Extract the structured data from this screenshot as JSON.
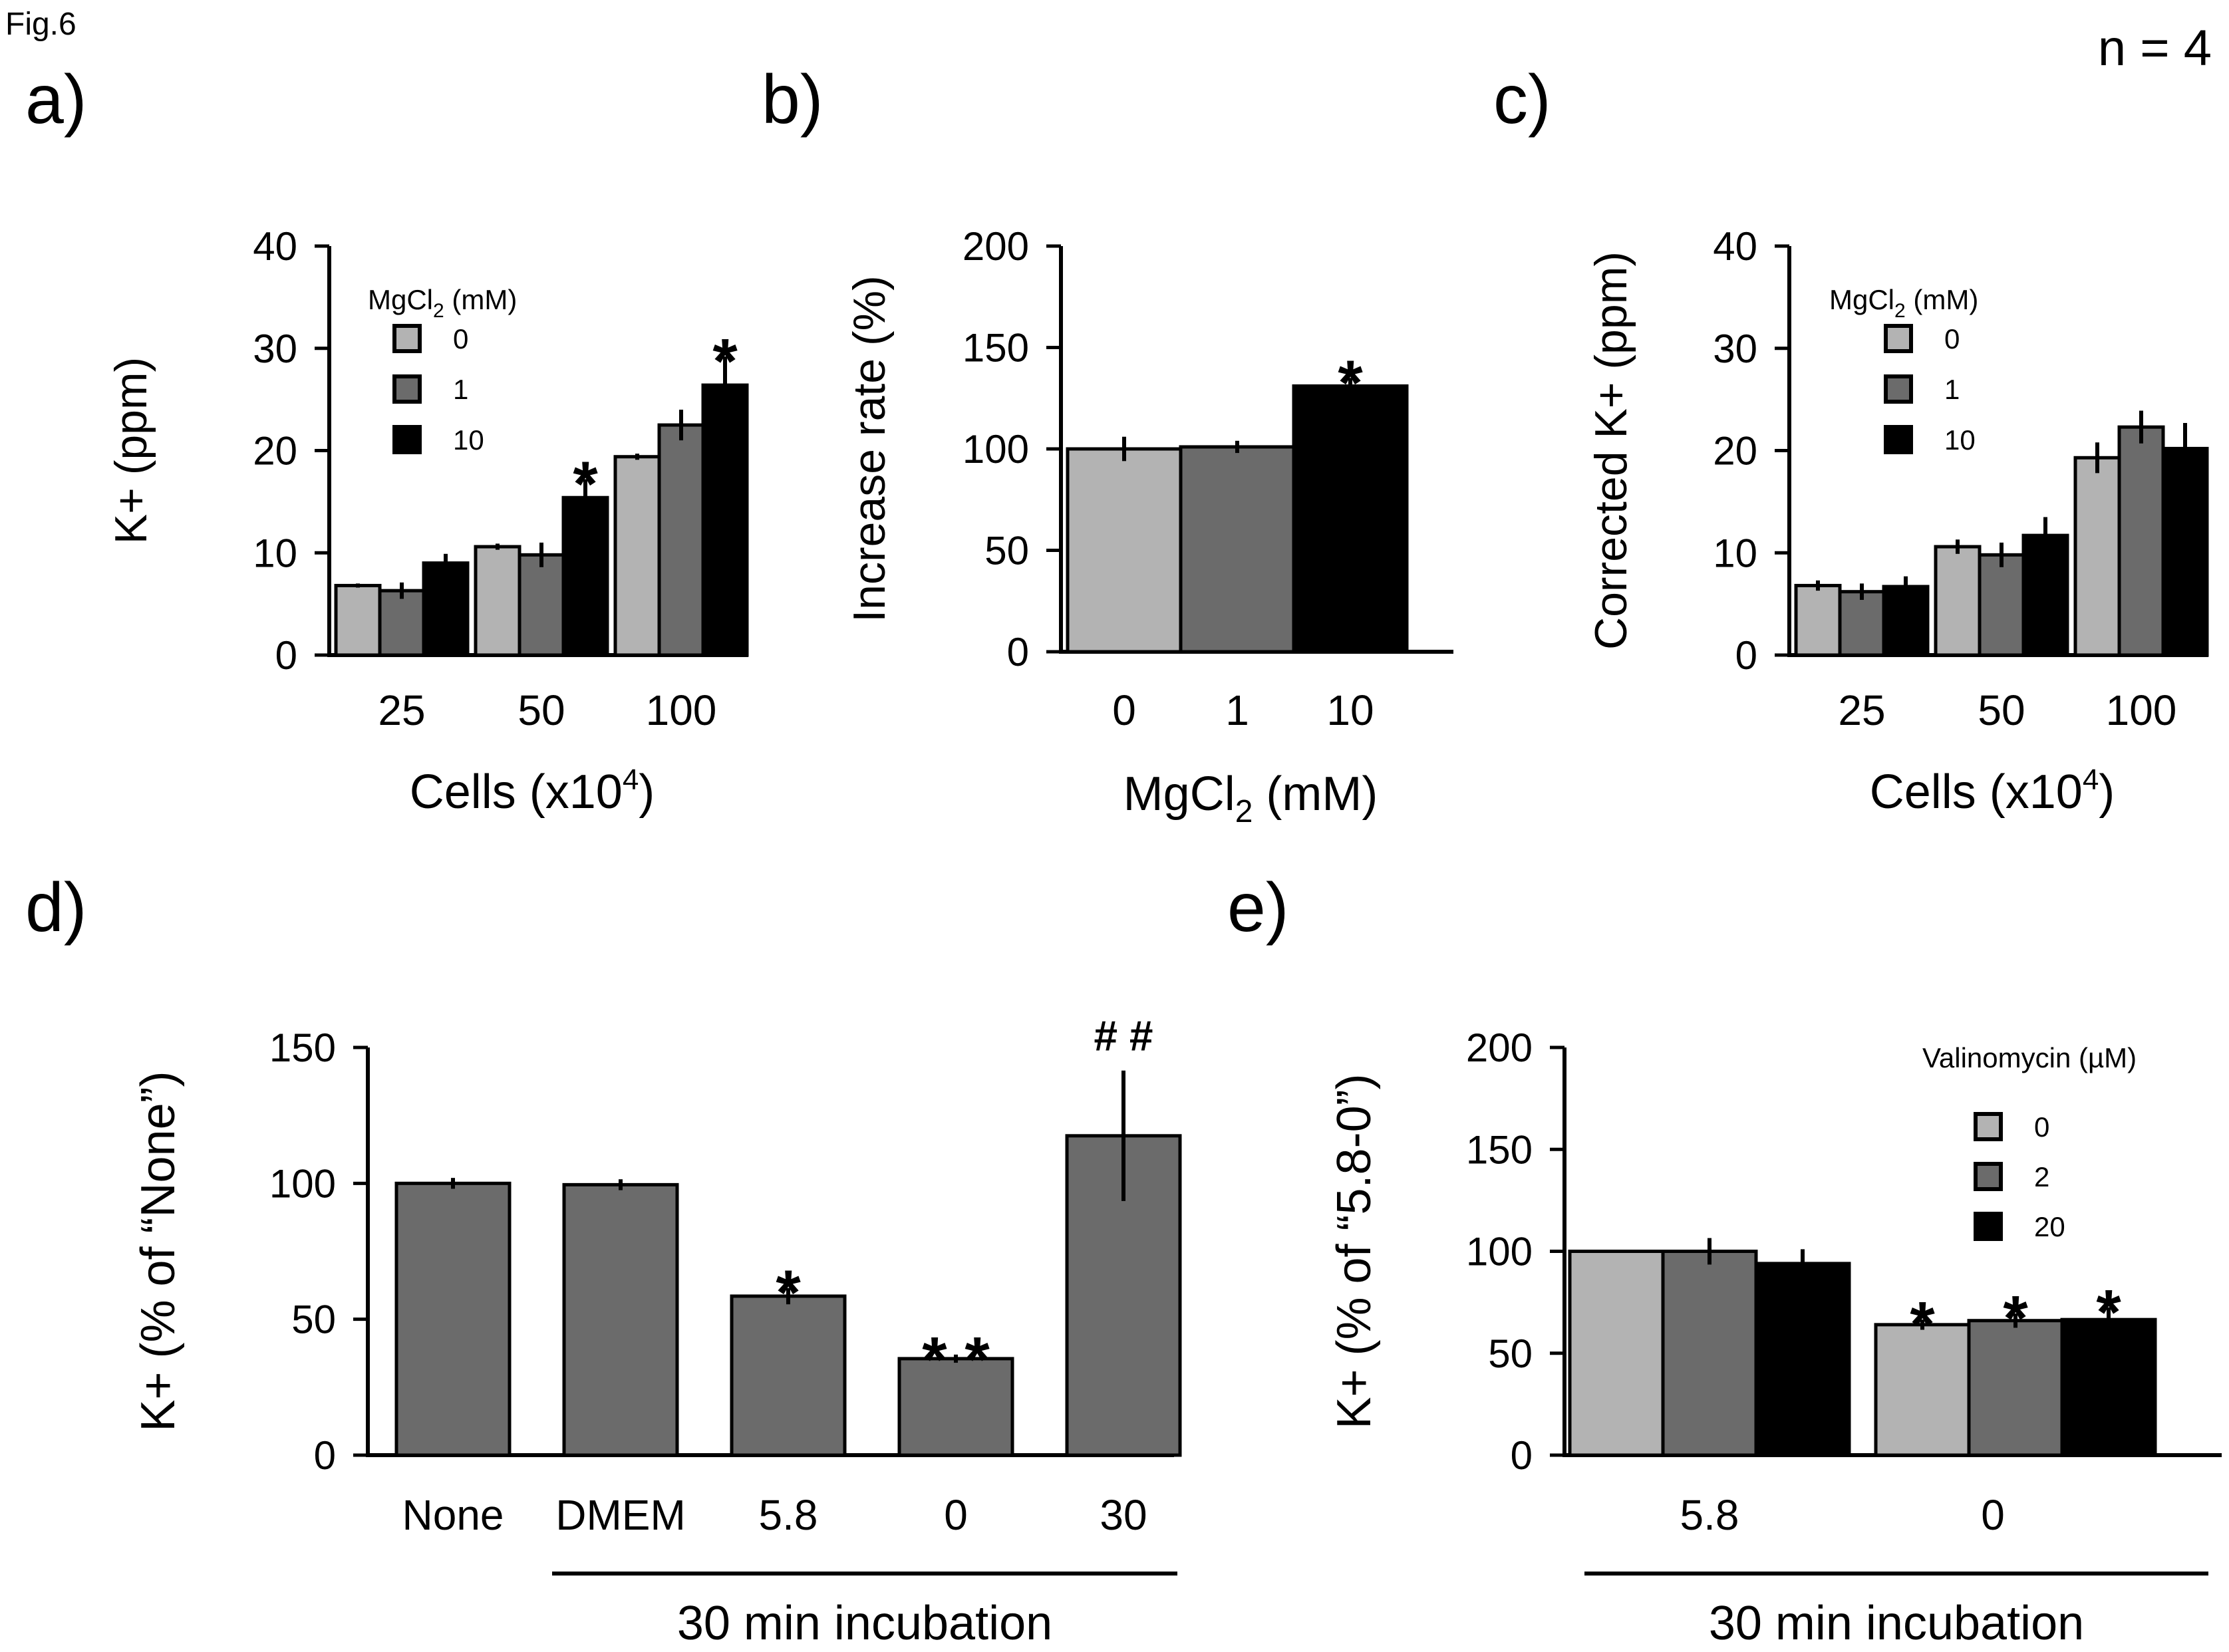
{
  "figure_label": "Fig.6",
  "n_label": "n = 4",
  "colors": {
    "light": "#b3b3b3",
    "mid": "#6b6b6b",
    "dark": "#000000",
    "axis": "#000000"
  },
  "chart_data": [
    {
      "id": "a",
      "panel_label": "a)",
      "type": "bar",
      "ylabel": "K+ (ppm)",
      "xlabel": {
        "main": "Cells (x10",
        "sup": "4",
        "tail": ")"
      },
      "ylim": [
        0,
        40
      ],
      "yticks": [
        0,
        10,
        20,
        30,
        40
      ],
      "categories": [
        "25",
        "50",
        "100"
      ],
      "legend": {
        "title_main": "MgCl",
        "title_sub": "2",
        "title_tail": " (mM)",
        "position": "top-left"
      },
      "series": [
        {
          "name": "0",
          "color": "light",
          "values": [
            6.8,
            10.6,
            19.4
          ],
          "errors": [
            0.2,
            0.3,
            0.3
          ]
        },
        {
          "name": "1",
          "color": "mid",
          "values": [
            6.3,
            9.8,
            22.5
          ],
          "errors": [
            0.8,
            1.2,
            1.5
          ]
        },
        {
          "name": "10",
          "color": "dark",
          "values": [
            9.0,
            15.4,
            26.4
          ],
          "errors": [
            0.9,
            1.8,
            2.8
          ]
        }
      ],
      "annotations": [
        {
          "category": 1,
          "series": 2,
          "text": "*"
        },
        {
          "category": 2,
          "series": 2,
          "text": "*"
        }
      ]
    },
    {
      "id": "b",
      "panel_label": "b)",
      "type": "bar",
      "ylabel": "Increase rate (%)",
      "xlabel": {
        "main": "MgCl",
        "sub": "2",
        "tail": " (mM)"
      },
      "ylim": [
        0,
        200
      ],
      "yticks": [
        0,
        50,
        100,
        150,
        200
      ],
      "categories": [
        "0",
        "1",
        "10"
      ],
      "series": [
        {
          "name": "MgCl2",
          "colors": [
            "light",
            "mid",
            "dark"
          ],
          "values": [
            100,
            101,
            131
          ],
          "errors": [
            6,
            3,
            4
          ]
        }
      ],
      "annotations": [
        {
          "category": 2,
          "text": "*"
        }
      ]
    },
    {
      "id": "c",
      "panel_label": "c)",
      "type": "bar",
      "ylabel": "Corrected K+ (ppm)",
      "xlabel": {
        "main": "Cells (x10",
        "sup": "4",
        "tail": ")"
      },
      "ylim": [
        0,
        40
      ],
      "yticks": [
        0,
        10,
        20,
        30,
        40
      ],
      "categories": [
        "25",
        "50",
        "100"
      ],
      "legend": {
        "title_main": "MgCl",
        "title_sub": "2",
        "title_tail": " (mM)",
        "position": "top-left"
      },
      "series": [
        {
          "name": "0",
          "color": "light",
          "values": [
            6.8,
            10.6,
            19.3
          ],
          "errors": [
            0.5,
            0.7,
            1.5
          ]
        },
        {
          "name": "1",
          "color": "mid",
          "values": [
            6.2,
            9.8,
            22.3
          ],
          "errors": [
            0.8,
            1.2,
            1.6
          ]
        },
        {
          "name": "10",
          "color": "dark",
          "values": [
            6.7,
            11.7,
            20.2
          ],
          "errors": [
            1.0,
            1.8,
            2.5
          ]
        }
      ],
      "annotations": []
    },
    {
      "id": "d",
      "panel_label": "d)",
      "type": "bar",
      "ylabel": "K+ (% of “None”)",
      "ylim": [
        0,
        150
      ],
      "yticks": [
        0,
        50,
        100,
        150
      ],
      "categories": [
        "None",
        "DMEM",
        "5.8",
        "0",
        "30"
      ],
      "series": [
        {
          "name": "K+",
          "color": "mid",
          "values": [
            100,
            99.5,
            58.5,
            35.5,
            117.5
          ],
          "errors": [
            2,
            2,
            3,
            1.5,
            24
          ]
        }
      ],
      "annotations": [
        {
          "category": 2,
          "text": "*"
        },
        {
          "category": 3,
          "text": "* *"
        },
        {
          "category": 4,
          "text": "# #"
        }
      ],
      "bracket": {
        "label": "30 min incubation",
        "from_category": 1,
        "to_category": 4
      }
    },
    {
      "id": "e",
      "panel_label": "e)",
      "type": "bar",
      "ylabel": "K+ (% of “5.8-0”)",
      "ylim": [
        0,
        200
      ],
      "yticks": [
        0,
        50,
        100,
        150,
        200
      ],
      "categories": [
        "5.8",
        "0"
      ],
      "legend": {
        "title_main": "Valinomycin (µM)",
        "title_sub": "",
        "title_tail": "",
        "position": "top-right"
      },
      "series": [
        {
          "name": "0",
          "color": "light",
          "values": [
            100,
            64
          ],
          "errors": [
            0.5,
            2.5
          ]
        },
        {
          "name": "2",
          "color": "mid",
          "values": [
            100,
            66
          ],
          "errors": [
            6.5,
            3.5
          ]
        },
        {
          "name": "20",
          "color": "dark",
          "values": [
            94,
            66.5
          ],
          "errors": [
            7,
            6
          ]
        }
      ],
      "annotations": [
        {
          "category": 1,
          "series": 0,
          "text": "*"
        },
        {
          "category": 1,
          "series": 1,
          "text": "*"
        },
        {
          "category": 1,
          "series": 2,
          "text": "*"
        }
      ],
      "bracket": {
        "label": "30 min incubation",
        "from_category": 0,
        "to_category": 1
      }
    }
  ]
}
